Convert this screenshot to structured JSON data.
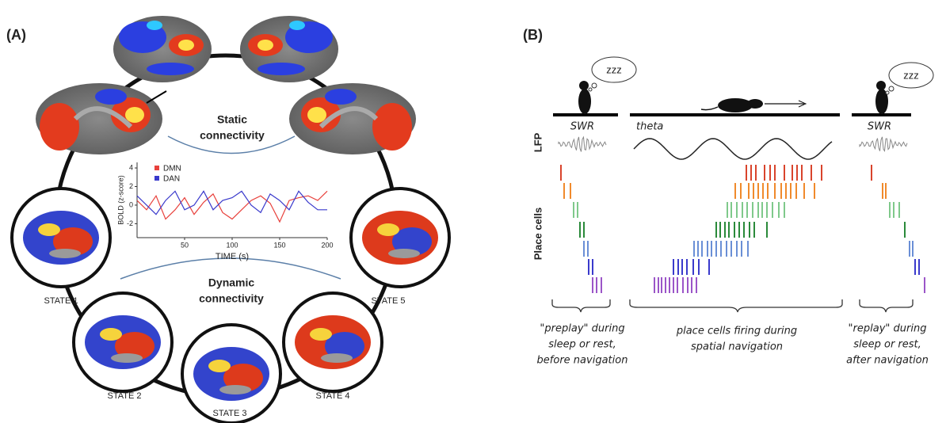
{
  "panel_a": {
    "label": "(A)",
    "static_label": [
      "Static",
      "connectivity"
    ],
    "dynamic_label": [
      "Dynamic",
      "connectivity"
    ],
    "states": [
      "STATE 1",
      "STATE 2",
      "STATE 3",
      "STATE 4",
      "STATE 5"
    ],
    "inset": {
      "type": "line",
      "x_label": "TIME (s)",
      "y_label": "BOLD (z-score)",
      "x": [
        0,
        10,
        20,
        30,
        40,
        50,
        60,
        70,
        80,
        90,
        100,
        110,
        120,
        130,
        140,
        150,
        160,
        170,
        180,
        190,
        200
      ],
      "series": [
        {
          "name": "DMN",
          "color": "#e8413c",
          "values": [
            0.5,
            -0.5,
            1,
            -1.5,
            -0.5,
            0.8,
            -1,
            0.3,
            1.2,
            -0.8,
            -1.5,
            -0.5,
            0.5,
            1,
            0.2,
            -1.8,
            0.5,
            0.8,
            1,
            0.5,
            1.5
          ]
        },
        {
          "name": "DAN",
          "color": "#3a3acc",
          "values": [
            1,
            0,
            -1,
            0.5,
            1.5,
            -0.5,
            0,
            1.5,
            -0.5,
            0.5,
            0.8,
            1.5,
            0,
            -0.8,
            1.2,
            0.5,
            -0.5,
            1.5,
            0.3,
            -0.5,
            -0.5
          ]
        }
      ],
      "xlim": [
        0,
        200
      ],
      "ylim": [
        -3.5,
        4.6
      ],
      "xticks": [
        50,
        100,
        150,
        200
      ],
      "yticks": [
        -2,
        0,
        2,
        4
      ]
    }
  },
  "panel_b": {
    "label": "(B)",
    "zzz": [
      "zzz",
      "zzz"
    ],
    "lfp": "LFP",
    "place_cells": "Place cells",
    "swr": [
      "SWR",
      "SWR"
    ],
    "theta": "theta",
    "captions": [
      [
        "\"preplay\" during",
        "sleep or rest,",
        "before navigation"
      ],
      [
        "place cells firing during",
        "spatial navigation"
      ],
      [
        "\"replay\" during",
        "sleep or rest,",
        "after navigation"
      ]
    ]
  }
}
